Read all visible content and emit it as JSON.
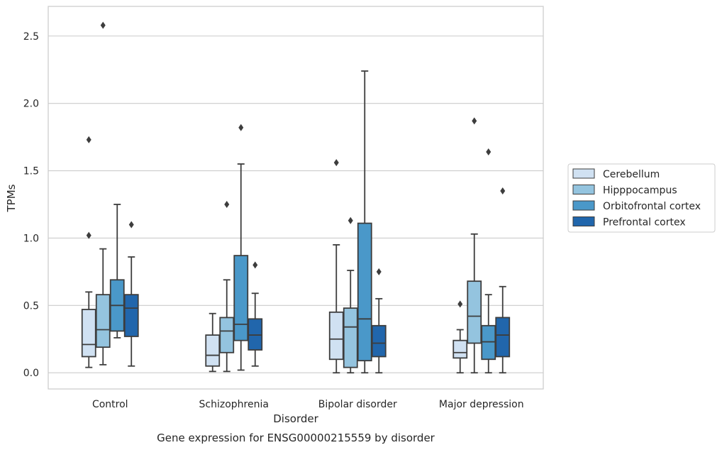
{
  "chart_data": {
    "type": "box",
    "caption": "Gene expression for ENSG00000215559 by disorder",
    "xlabel": "Disorder",
    "ylabel": "TPMs",
    "ylim": [
      -0.12,
      2.72
    ],
    "yticks": [
      "0.0",
      "0.5",
      "1.0",
      "1.5",
      "2.0",
      "2.5"
    ],
    "ytick_values": [
      0,
      0.5,
      1.0,
      1.5,
      2.0,
      2.5
    ],
    "categories": [
      "Control",
      "Schizophrenia",
      "Bipolar disorder",
      "Major depression"
    ],
    "grid": "horizontal",
    "legend_position": "right",
    "series": [
      {
        "name": "Cerebellum",
        "color": "#d0e1f2",
        "boxes": [
          {
            "whisker_low": 0.04,
            "q1": 0.12,
            "median": 0.21,
            "q3": 0.47,
            "whisker_high": 0.6,
            "outliers": [
              1.02,
              1.73
            ]
          },
          {
            "whisker_low": 0.01,
            "q1": 0.05,
            "median": 0.13,
            "q3": 0.28,
            "whisker_high": 0.44,
            "outliers": []
          },
          {
            "whisker_low": 0.0,
            "q1": 0.1,
            "median": 0.25,
            "q3": 0.45,
            "whisker_high": 0.95,
            "outliers": [
              1.56
            ]
          },
          {
            "whisker_low": 0.0,
            "q1": 0.11,
            "median": 0.15,
            "q3": 0.24,
            "whisker_high": 0.32,
            "outliers": [
              0.51
            ]
          }
        ]
      },
      {
        "name": "Hipppocampus",
        "color": "#94c4df",
        "boxes": [
          {
            "whisker_low": 0.06,
            "q1": 0.19,
            "median": 0.32,
            "q3": 0.58,
            "whisker_high": 0.92,
            "outliers": [
              2.58
            ]
          },
          {
            "whisker_low": 0.01,
            "q1": 0.15,
            "median": 0.31,
            "q3": 0.41,
            "whisker_high": 0.69,
            "outliers": [
              1.25
            ]
          },
          {
            "whisker_low": 0.0,
            "q1": 0.04,
            "median": 0.34,
            "q3": 0.48,
            "whisker_high": 0.76,
            "outliers": [
              1.13
            ]
          },
          {
            "whisker_low": 0.0,
            "q1": 0.22,
            "median": 0.42,
            "q3": 0.68,
            "whisker_high": 1.03,
            "outliers": [
              1.87
            ]
          }
        ]
      },
      {
        "name": "Orbitofrontal cortex",
        "color": "#4a98c9",
        "boxes": [
          {
            "whisker_low": 0.26,
            "q1": 0.31,
            "median": 0.5,
            "q3": 0.69,
            "whisker_high": 1.25,
            "outliers": []
          },
          {
            "whisker_low": 0.02,
            "q1": 0.24,
            "median": 0.36,
            "q3": 0.87,
            "whisker_high": 1.55,
            "outliers": [
              1.82
            ]
          },
          {
            "whisker_low": 0.0,
            "q1": 0.09,
            "median": 0.4,
            "q3": 1.11,
            "whisker_high": 2.24,
            "outliers": []
          },
          {
            "whisker_low": 0.0,
            "q1": 0.1,
            "median": 0.23,
            "q3": 0.35,
            "whisker_high": 0.58,
            "outliers": [
              1.64
            ]
          }
        ]
      },
      {
        "name": "Prefrontal cortex",
        "color": "#2166ac",
        "boxes": [
          {
            "whisker_low": 0.05,
            "q1": 0.27,
            "median": 0.48,
            "q3": 0.58,
            "whisker_high": 0.86,
            "outliers": [
              1.1
            ]
          },
          {
            "whisker_low": 0.05,
            "q1": 0.17,
            "median": 0.28,
            "q3": 0.4,
            "whisker_high": 0.59,
            "outliers": [
              0.8
            ]
          },
          {
            "whisker_low": 0.0,
            "q1": 0.12,
            "median": 0.22,
            "q3": 0.35,
            "whisker_high": 0.55,
            "outliers": [
              0.75
            ]
          },
          {
            "whisker_low": 0.0,
            "q1": 0.12,
            "median": 0.28,
            "q3": 0.41,
            "whisker_high": 0.64,
            "outliers": [
              1.35
            ]
          }
        ]
      }
    ]
  }
}
